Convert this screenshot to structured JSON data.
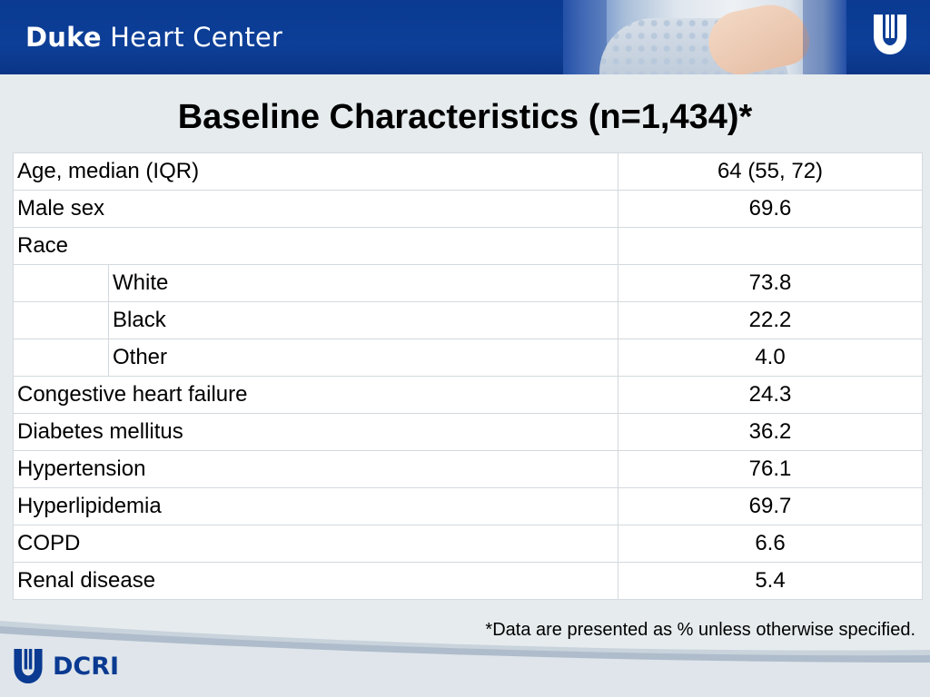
{
  "header": {
    "brand_bold": "Duke",
    "brand_rest": " Heart Center"
  },
  "title": "Baseline Characteristics (n=1,434)*",
  "rows": [
    {
      "label": "Age, median (IQR)",
      "value": "64 (55, 72)"
    },
    {
      "label": "Male sex",
      "value": "69.6"
    },
    {
      "label": "Race",
      "value": ""
    },
    {
      "sub": "White",
      "value": "73.8"
    },
    {
      "sub": "Black",
      "value": "22.2"
    },
    {
      "sub": "Other",
      "value": "4.0"
    },
    {
      "label": "Congestive heart failure",
      "value": "24.3"
    },
    {
      "label": "Diabetes mellitus",
      "value": "36.2"
    },
    {
      "label": "Hypertension",
      "value": "76.1"
    },
    {
      "label": "Hyperlipidemia",
      "value": "69.7"
    },
    {
      "label": "COPD",
      "value": "6.6"
    },
    {
      "label": "Renal disease",
      "value": "5.4"
    }
  ],
  "footnote": "*Data are presented as % unless otherwise specified.",
  "footer": {
    "logo_text": "DCRI"
  },
  "icons": {
    "top_logo": "duke-shield-icon",
    "bottom_logo": "duke-shield-icon"
  },
  "colors": {
    "header_blue": "#0a3a91",
    "background": "#e6ebee"
  }
}
